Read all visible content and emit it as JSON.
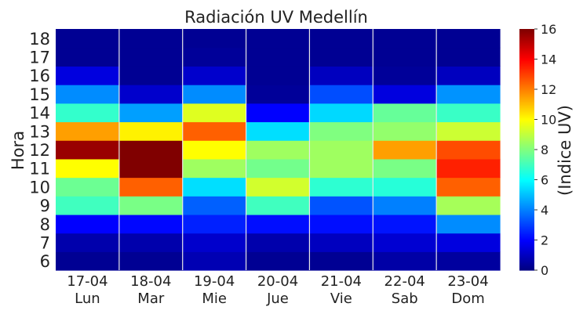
{
  "chart_data": {
    "type": "heatmap",
    "title": "Radiación UV Medellín",
    "ylabel": "Hora",
    "colorbar_label": "(Indice UV)",
    "colormap": "jet",
    "vmin": 0,
    "vmax": 16,
    "colorbar_ticks": [
      "0",
      "2",
      "4",
      "6",
      "8",
      "10",
      "12",
      "14",
      "16"
    ],
    "x_dates": [
      "17-04",
      "18-04",
      "19-04",
      "20-04",
      "21-04",
      "22-04",
      "23-04"
    ],
    "x_days": [
      "Lun",
      "Mar",
      "Mie",
      "Jue",
      "Vie",
      "Sab",
      "Dom"
    ],
    "y_hours": [
      "6",
      "7",
      "8",
      "9",
      "10",
      "11",
      "12",
      "13",
      "14",
      "15",
      "16",
      "17",
      "18"
    ],
    "values": [
      [
        0.3,
        0.3,
        0.8,
        0.3,
        0.3,
        0.6,
        0.5
      ],
      [
        0.7,
        0.7,
        1.2,
        0.7,
        1.0,
        1.3,
        1.5
      ],
      [
        2.0,
        2.1,
        2.5,
        2.2,
        2.2,
        2.3,
        4.2
      ],
      [
        7.0,
        7.9,
        3.5,
        7.0,
        3.3,
        4.0,
        8.6
      ],
      [
        7.7,
        12.5,
        5.5,
        9.3,
        6.7,
        6.6,
        12.5
      ],
      [
        10.0,
        16.0,
        8.5,
        7.8,
        8.5,
        7.9,
        13.5
      ],
      [
        15.6,
        16.0,
        10.0,
        8.5,
        8.5,
        11.5,
        12.8
      ],
      [
        11.5,
        10.2,
        12.5,
        5.5,
        8.0,
        8.3,
        9.2
      ],
      [
        6.8,
        4.5,
        9.5,
        2.0,
        5.4,
        7.6,
        6.9
      ],
      [
        4.2,
        1.2,
        4.2,
        0.4,
        3.2,
        1.5,
        4.3
      ],
      [
        1.5,
        0.3,
        1.2,
        0.3,
        1.0,
        0.4,
        1.0
      ],
      [
        0.3,
        0.3,
        0.4,
        0.3,
        0.3,
        0.3,
        0.3
      ],
      [
        0.3,
        0.3,
        0.3,
        0.3,
        0.3,
        0.3,
        0.3
      ]
    ]
  }
}
